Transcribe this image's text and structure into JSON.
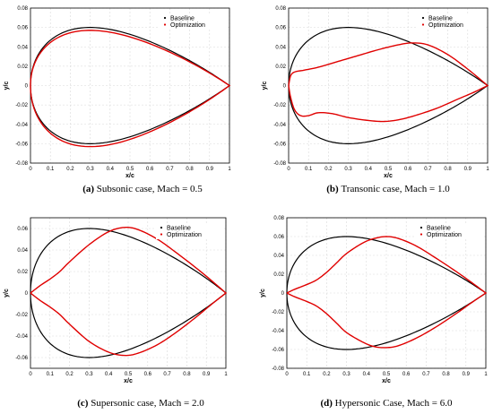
{
  "chart_data": [
    {
      "type": "line",
      "caption": {
        "tag": "(a)",
        "text": "Subsonic case, Mach = 0.5"
      },
      "xlabel": "x/c",
      "ylabel": "y/c",
      "xlim": [
        0,
        1
      ],
      "ylim": [
        -0.08,
        0.08
      ],
      "xticks": [
        "0",
        "0.1",
        "0.2",
        "0.3",
        "0.4",
        "0.5",
        "0.6",
        "0.7",
        "0.8",
        "0.9",
        "1"
      ],
      "yticks": [
        "-0.08",
        "-0.06",
        "-0.04",
        "-0.02",
        "0",
        "0.02",
        "0.04",
        "0.06",
        "0.08"
      ],
      "grid": true,
      "legend_position": "top-right",
      "series": [
        {
          "name": "Baseline",
          "color": "#000000",
          "shape": "symmetric",
          "tmax": 0.06,
          "xpeak": 0.3
        },
        {
          "name": "Optimization",
          "color": "#e00000",
          "shape": "symmetric",
          "tmax": 0.057,
          "xpeak": 0.31,
          "lower_tmax": 0.063
        }
      ]
    },
    {
      "type": "line",
      "caption": {
        "tag": "(b)",
        "text": "Transonic case, Mach = 1.0"
      },
      "xlabel": "x/c",
      "ylabel": "y/c",
      "xlim": [
        0,
        1
      ],
      "ylim": [
        -0.08,
        0.08
      ],
      "xticks": [
        "0",
        "0.1",
        "0.2",
        "0.3",
        "0.4",
        "0.5",
        "0.6",
        "0.7",
        "0.8",
        "0.9",
        "1"
      ],
      "yticks": [
        "-0.08",
        "-0.06",
        "-0.04",
        "-0.02",
        "0",
        "0.02",
        "0.04",
        "0.06",
        "0.08"
      ],
      "grid": true,
      "legend_position": "top-right",
      "series": [
        {
          "name": "Baseline",
          "color": "#000000",
          "shape": "symmetric",
          "tmax": 0.06,
          "xpeak": 0.3
        },
        {
          "name": "Optimization",
          "color": "#e00000",
          "shape": "points",
          "upper": [
            [
              0,
              0
            ],
            [
              0.01,
              0.01
            ],
            [
              0.03,
              0.014
            ],
            [
              0.08,
              0.016
            ],
            [
              0.15,
              0.019
            ],
            [
              0.25,
              0.025
            ],
            [
              0.35,
              0.031
            ],
            [
              0.45,
              0.037
            ],
            [
              0.55,
              0.042
            ],
            [
              0.62,
              0.044
            ],
            [
              0.7,
              0.042
            ],
            [
              0.8,
              0.032
            ],
            [
              0.9,
              0.017
            ],
            [
              1,
              0
            ]
          ],
          "lower": [
            [
              0,
              0
            ],
            [
              0.01,
              -0.012
            ],
            [
              0.03,
              -0.025
            ],
            [
              0.06,
              -0.031
            ],
            [
              0.1,
              -0.031
            ],
            [
              0.15,
              -0.028
            ],
            [
              0.22,
              -0.029
            ],
            [
              0.3,
              -0.033
            ],
            [
              0.4,
              -0.036
            ],
            [
              0.48,
              -0.037
            ],
            [
              0.56,
              -0.035
            ],
            [
              0.65,
              -0.03
            ],
            [
              0.75,
              -0.023
            ],
            [
              0.85,
              -0.014
            ],
            [
              0.93,
              -0.007
            ],
            [
              1,
              0
            ]
          ]
        }
      ]
    },
    {
      "type": "line",
      "caption": {
        "tag": "(c)",
        "text": "Supersonic case, Mach = 2.0"
      },
      "xlabel": "x/c",
      "ylabel": "y/c",
      "xlim": [
        0,
        1
      ],
      "ylim": [
        -0.07,
        0.07
      ],
      "xticks": [
        "0",
        "0.1",
        "0.2",
        "0.3",
        "0.4",
        "0.5",
        "0.6",
        "0.7",
        "0.8",
        "0.9",
        "1"
      ],
      "yticks": [
        "-0.06",
        "-0.04",
        "-0.02",
        "0",
        "0.02",
        "0.04",
        "0.06"
      ],
      "grid": true,
      "legend_position": "top-right",
      "series": [
        {
          "name": "Baseline",
          "color": "#000000",
          "shape": "symmetric",
          "tmax": 0.06,
          "xpeak": 0.3
        },
        {
          "name": "Optimization",
          "color": "#e00000",
          "shape": "points",
          "upper": [
            [
              0,
              0
            ],
            [
              0.05,
              0.007
            ],
            [
              0.1,
              0.013
            ],
            [
              0.15,
              0.02
            ],
            [
              0.2,
              0.029
            ],
            [
              0.3,
              0.045
            ],
            [
              0.4,
              0.057
            ],
            [
              0.48,
              0.061
            ],
            [
              0.55,
              0.059
            ],
            [
              0.65,
              0.05
            ],
            [
              0.75,
              0.037
            ],
            [
              0.85,
              0.023
            ],
            [
              0.93,
              0.011
            ],
            [
              1,
              0
            ]
          ],
          "lower": [
            [
              0,
              0
            ],
            [
              0.05,
              -0.007
            ],
            [
              0.1,
              -0.013
            ],
            [
              0.15,
              -0.02
            ],
            [
              0.2,
              -0.029
            ],
            [
              0.3,
              -0.045
            ],
            [
              0.4,
              -0.055
            ],
            [
              0.48,
              -0.058
            ],
            [
              0.55,
              -0.056
            ],
            [
              0.65,
              -0.048
            ],
            [
              0.75,
              -0.036
            ],
            [
              0.85,
              -0.022
            ],
            [
              0.93,
              -0.01
            ],
            [
              1,
              0
            ]
          ]
        }
      ]
    },
    {
      "type": "line",
      "caption": {
        "tag": "(d)",
        "text": "Hypersonic Case, Mach = 6.0"
      },
      "xlabel": "x/c",
      "ylabel": "y/c",
      "xlim": [
        0,
        1
      ],
      "ylim": [
        -0.08,
        0.08
      ],
      "xticks": [
        "0",
        "0.1",
        "0.2",
        "0.3",
        "0.4",
        "0.5",
        "0.6",
        "0.7",
        "0.8",
        "0.9",
        "1"
      ],
      "yticks": [
        "-0.08",
        "-0.06",
        "-0.04",
        "-0.02",
        "0",
        "0.02",
        "0.04",
        "0.06",
        "0.08"
      ],
      "grid": true,
      "legend_position": "top-right",
      "series": [
        {
          "name": "Baseline",
          "color": "#000000",
          "shape": "symmetric",
          "tmax": 0.06,
          "xpeak": 0.3
        },
        {
          "name": "Optimization",
          "color": "#e00000",
          "shape": "points",
          "upper": [
            [
              0,
              0
            ],
            [
              0.04,
              0.004
            ],
            [
              0.1,
              0.009
            ],
            [
              0.15,
              0.014
            ],
            [
              0.2,
              0.022
            ],
            [
              0.25,
              0.032
            ],
            [
              0.3,
              0.042
            ],
            [
              0.38,
              0.053
            ],
            [
              0.44,
              0.058
            ],
            [
              0.5,
              0.06
            ],
            [
              0.56,
              0.058
            ],
            [
              0.65,
              0.05
            ],
            [
              0.75,
              0.037
            ],
            [
              0.85,
              0.023
            ],
            [
              0.93,
              0.011
            ],
            [
              1,
              0
            ]
          ],
          "lower": [
            [
              0,
              0
            ],
            [
              0.04,
              -0.004
            ],
            [
              0.1,
              -0.009
            ],
            [
              0.15,
              -0.014
            ],
            [
              0.2,
              -0.022
            ],
            [
              0.25,
              -0.032
            ],
            [
              0.3,
              -0.042
            ],
            [
              0.38,
              -0.052
            ],
            [
              0.44,
              -0.057
            ],
            [
              0.5,
              -0.058
            ],
            [
              0.56,
              -0.056
            ],
            [
              0.65,
              -0.048
            ],
            [
              0.75,
              -0.036
            ],
            [
              0.85,
              -0.022
            ],
            [
              0.93,
              -0.01
            ],
            [
              1,
              0
            ]
          ]
        }
      ]
    }
  ]
}
